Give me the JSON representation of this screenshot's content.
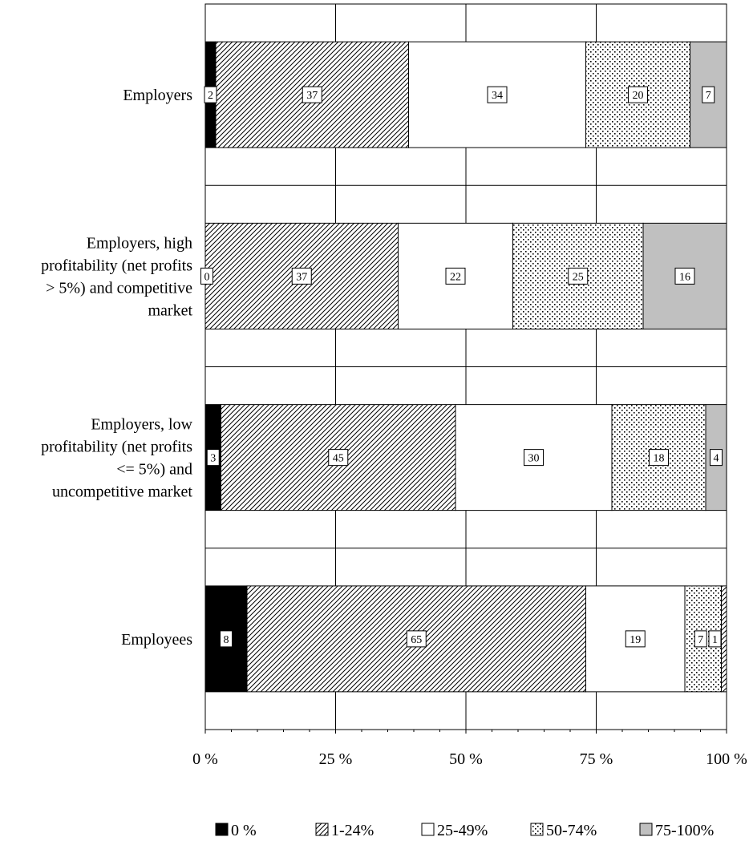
{
  "chart_data": {
    "type": "bar",
    "orientation": "horizontal",
    "stacked": true,
    "categories": [
      [
        "Employers"
      ],
      [
        "Employers, high",
        "profitability (net profits",
        "> 5%) and competitive",
        "market"
      ],
      [
        "Employers, low",
        "profitability (net profits",
        "<= 5%) and",
        "uncompetitive market"
      ],
      [
        "Employees"
      ]
    ],
    "series": [
      {
        "name": "0 %",
        "values": [
          2,
          0,
          3,
          8
        ],
        "fill": "solid",
        "color": "#000000"
      },
      {
        "name": "1-24%",
        "values": [
          37,
          37,
          45,
          65
        ],
        "fill": "diagonal-hatch",
        "color": "#000000"
      },
      {
        "name": "25-49%",
        "values": [
          34,
          22,
          30,
          19
        ],
        "fill": "solid",
        "color": "#ffffff"
      },
      {
        "name": "50-74%",
        "values": [
          20,
          25,
          18,
          7
        ],
        "fill": "dots",
        "color": "#000000"
      },
      {
        "name": "75-100%",
        "values": [
          7,
          16,
          4,
          1
        ],
        "fill": "solid",
        "color": "#c0c0c0"
      }
    ],
    "last_bar_top_segment_fill": "diagonal-hatch",
    "data_labels": [
      [
        "2",
        "37",
        "34",
        "20",
        "7"
      ],
      [
        "0",
        "37",
        "22",
        "25",
        "16"
      ],
      [
        "3",
        "45",
        "30",
        "18",
        "4"
      ],
      [
        "8",
        "65",
        "19",
        "7",
        "1"
      ]
    ],
    "x_ticks": [
      "0 %",
      "25 %",
      "50 %",
      "75 %",
      "100 %"
    ],
    "xlim": [
      0,
      100
    ],
    "grid": true,
    "legend_position": "bottom",
    "title": "",
    "xlabel": "",
    "ylabel": ""
  }
}
